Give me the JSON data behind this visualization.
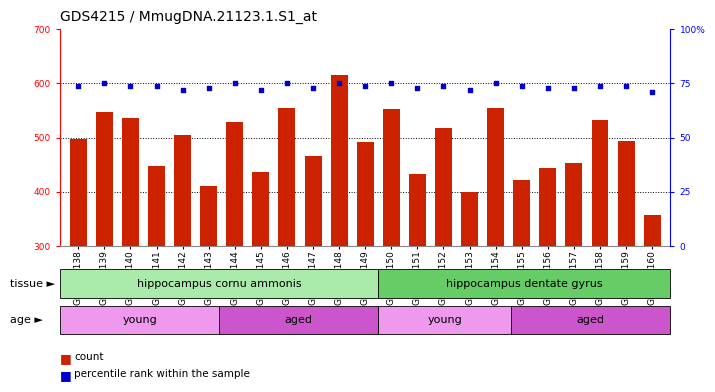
{
  "title": "GDS4215 / MmugDNA.21123.1.S1_at",
  "samples": [
    "GSM297138",
    "GSM297139",
    "GSM297140",
    "GSM297141",
    "GSM297142",
    "GSM297143",
    "GSM297144",
    "GSM297145",
    "GSM297146",
    "GSM297147",
    "GSM297148",
    "GSM297149",
    "GSM297150",
    "GSM297151",
    "GSM297152",
    "GSM297153",
    "GSM297154",
    "GSM297155",
    "GSM297156",
    "GSM297157",
    "GSM297158",
    "GSM297159",
    "GSM297160"
  ],
  "counts": [
    498,
    547,
    537,
    447,
    504,
    411,
    529,
    437,
    555,
    467,
    616,
    492,
    552,
    433,
    517,
    399,
    555,
    421,
    444,
    454,
    533,
    493,
    357
  ],
  "percentiles": [
    74,
    75,
    74,
    74,
    72,
    73,
    75,
    72,
    75,
    73,
    75,
    74,
    75,
    73,
    74,
    72,
    75,
    74,
    73,
    73,
    74,
    74,
    71
  ],
  "ylim_left": [
    300,
    700
  ],
  "ylim_right": [
    0,
    100
  ],
  "yticks_left": [
    300,
    400,
    500,
    600,
    700
  ],
  "yticks_right": [
    0,
    25,
    50,
    75,
    100
  ],
  "bar_color": "#cc2200",
  "dot_color": "#0000cc",
  "tissue_groups": [
    {
      "label": "hippocampus cornu ammonis",
      "start": 0,
      "end": 11,
      "color": "#aaeaaa"
    },
    {
      "label": "hippocampus dentate gyrus",
      "start": 12,
      "end": 22,
      "color": "#66cc66"
    }
  ],
  "age_groups": [
    {
      "label": "young",
      "start": 0,
      "end": 5,
      "color": "#ee99ee"
    },
    {
      "label": "aged",
      "start": 6,
      "end": 11,
      "color": "#cc55cc"
    },
    {
      "label": "young",
      "start": 12,
      "end": 16,
      "color": "#ee99ee"
    },
    {
      "label": "aged",
      "start": 17,
      "end": 22,
      "color": "#cc55cc"
    }
  ],
  "tissue_label": "tissue",
  "age_label": "age",
  "legend_count_label": "count",
  "legend_pct_label": "percentile rank within the sample",
  "plot_bg": "#ffffff",
  "fig_bg": "#ffffff",
  "grid_color": "#000000",
  "title_fontsize": 10,
  "tick_fontsize": 6.5,
  "label_fontsize": 8,
  "bar_width": 0.65
}
